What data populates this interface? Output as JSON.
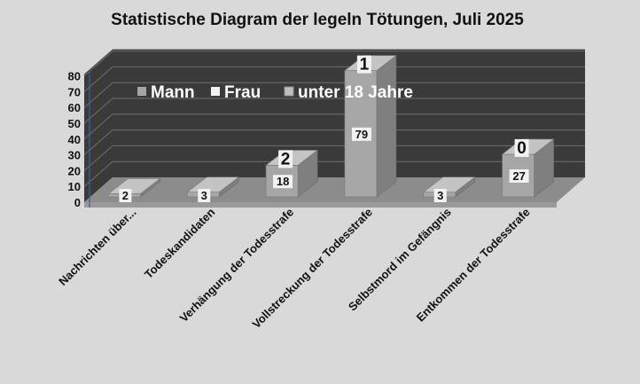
{
  "chart_data": {
    "type": "bar",
    "title": "Statistische Diagram der legeln Tötungen, Juli 2025",
    "categories": [
      "Nachrichten über...",
      "Todeskandidaten",
      "Verhängung der Todesstrafe",
      "Vollstreckung der Todesstrafe",
      "Selbstmord im Gefängnis",
      "Entkommen der Todesstrafe"
    ],
    "series": [
      {
        "name": "Mann",
        "values": [
          2,
          3,
          18,
          79,
          3,
          27
        ]
      },
      {
        "name": "Frau",
        "values": [
          null,
          null,
          2,
          1,
          null,
          0
        ]
      },
      {
        "name": "unter 18 Jahre",
        "values": [
          null,
          null,
          null,
          null,
          null,
          null
        ]
      }
    ],
    "stacked": true,
    "yticks": [
      "0",
      "10",
      "20",
      "30",
      "40",
      "50",
      "60",
      "70",
      "80"
    ],
    "ylim": [
      0,
      80
    ],
    "grid": true,
    "legend_position": "top-left, inside plot area",
    "colors": {
      "background": "#d9d9d9",
      "wall": "#3a3a3a",
      "gridline": "#6f6f6f",
      "floor": "#8c8c8c",
      "bar_front": "#a6a6a6",
      "bar_side": "#7f7f7f",
      "bar_top": "#c4c4c4",
      "label_box": "#f2f2f2",
      "axis_line": "#3b5ea8"
    }
  }
}
